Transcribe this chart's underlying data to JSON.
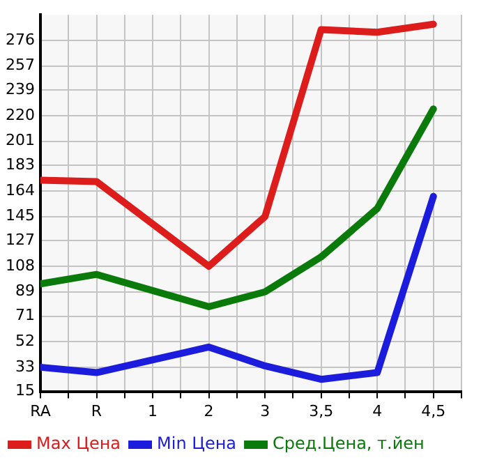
{
  "chart_data": {
    "type": "line",
    "categories": [
      "RA",
      "R",
      "1",
      "2",
      "3",
      "3,5",
      "4",
      "4,5"
    ],
    "series": [
      {
        "name": "Max Цена",
        "color": "#dd1c1c",
        "values": [
          172,
          171,
          null,
          108,
          145,
          284,
          282,
          288
        ]
      },
      {
        "name": "Min Цена",
        "color": "#1c1cdd",
        "values": [
          33,
          29,
          null,
          48,
          34,
          24,
          29,
          160
        ]
      },
      {
        "name": "Сред.Цена, т.йен",
        "color": "#0a7a0a",
        "values": [
          95,
          102,
          null,
          78,
          89,
          115,
          151,
          225
        ]
      }
    ],
    "ylim": [
      15,
      295
    ],
    "yticks": [
      15,
      33,
      52,
      71,
      89,
      108,
      127,
      145,
      164,
      183,
      201,
      220,
      239,
      257,
      276
    ],
    "grid": true,
    "legend": "bottom",
    "marker": "none",
    "line_style": "solid"
  }
}
